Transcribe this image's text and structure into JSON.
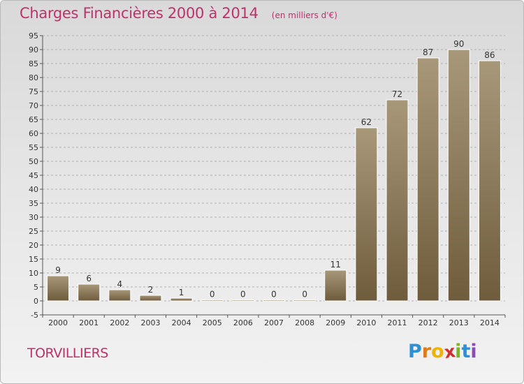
{
  "header": {
    "title": "Charges Financières 2000 à 2014",
    "unit": "(en milliers d'€)"
  },
  "footer": {
    "town": "TORVILLIERS",
    "brand": {
      "letters": [
        "P",
        "r",
        "o",
        "x",
        "i",
        "t",
        "i"
      ],
      "colors": [
        "#2d8fd6",
        "#e07b1a",
        "#f0b400",
        "#d42a2a",
        "#7ab51d",
        "#2d8fd6",
        "#8d4ab0"
      ]
    }
  },
  "colors": {
    "bar_top": "#a8987a",
    "bar_bottom": "#6e5c3c",
    "grid": "#b0b0b0",
    "title": "#c0306a"
  },
  "chart_data": {
    "type": "bar",
    "title": "Charges Financières 2000 à 2014",
    "subtitle": "(en milliers d'€)",
    "categories": [
      "2000",
      "2001",
      "2002",
      "2003",
      "2004",
      "2005",
      "2006",
      "2007",
      "2008",
      "2009",
      "2010",
      "2011",
      "2012",
      "2013",
      "2014"
    ],
    "values": [
      9,
      6,
      4,
      2,
      1,
      0,
      0,
      0,
      0,
      11,
      62,
      72,
      87,
      90,
      86
    ],
    "ylim": [
      -5,
      95
    ],
    "yticks": [
      -5,
      0,
      5,
      10,
      15,
      20,
      25,
      30,
      35,
      40,
      45,
      50,
      55,
      60,
      65,
      70,
      75,
      80,
      85,
      90,
      95
    ],
    "grid": "horizontal dashed",
    "legend": "none"
  }
}
